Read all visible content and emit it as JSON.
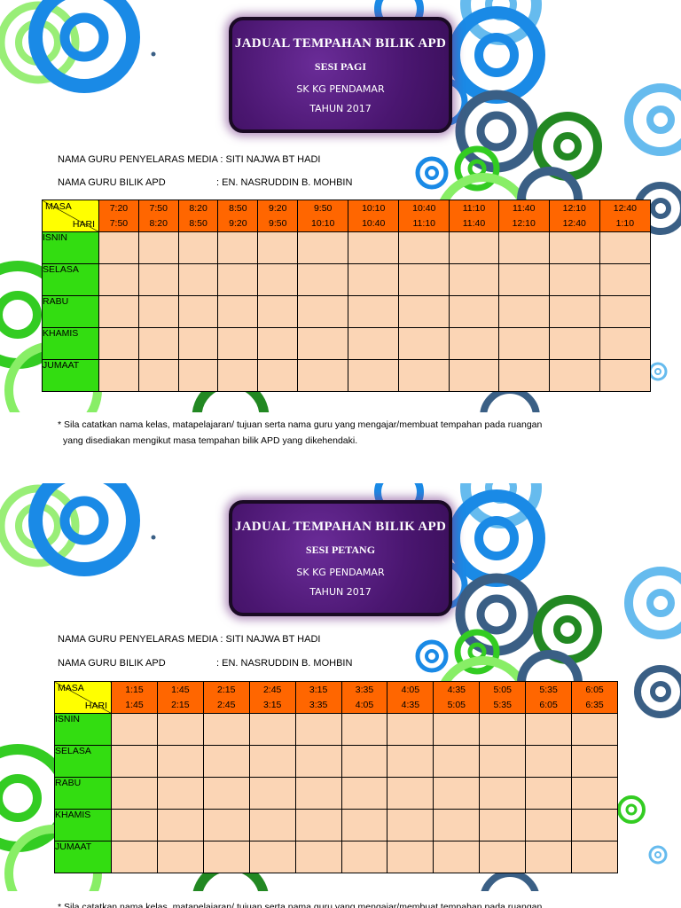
{
  "tables": [
    {
      "title": "JADUAL TEMPAHAN BILIK APD",
      "session": "SESI PAGI",
      "school": "SK KG PENDAMAR",
      "year": "TAHUN 2017",
      "coordinator_line": "NAMA GURU PENYELARAS MEDIA : SITI NAJWA BT HADI",
      "apd_teacher_label": "NAMA GURU BILIK APD",
      "apd_teacher_value": ": EN. NASRUDDIN B. MOHBIN",
      "corner_masa": "MASA",
      "corner_hari": "HARI",
      "time_slots": [
        {
          "start": "7:20",
          "end": "7:50"
        },
        {
          "start": "7:50",
          "end": "8:20"
        },
        {
          "start": "8:20",
          "end": "8:50"
        },
        {
          "start": "8:50",
          "end": "9:20"
        },
        {
          "start": "9:20",
          "end": "9:50"
        },
        {
          "start": "9:50",
          "end": "10:10"
        },
        {
          "start": "10:10",
          "end": "10:40"
        },
        {
          "start": "10:40",
          "end": "11:10"
        },
        {
          "start": "11:10",
          "end": "11:40"
        },
        {
          "start": "11:40",
          "end": "12:10"
        },
        {
          "start": "12:10",
          "end": "12:40"
        },
        {
          "start": "12:40",
          "end": "1:10"
        }
      ],
      "days": [
        "ISNIN",
        "SELASA",
        "RABU",
        "KHAMIS",
        "JUMAAT"
      ],
      "note_line1": "* Sila catatkan nama kelas, matapelajaran/ tujuan serta nama guru yang mengajar/membuat tempahan pada ruangan",
      "note_line2": "yang disediakan mengikut masa tempahan bilik APD yang dikehendaki."
    },
    {
      "title": "JADUAL TEMPAHAN BILIK APD",
      "session": "SESI PETANG",
      "school": "SK KG PENDAMAR",
      "year": "TAHUN 2017",
      "coordinator_line": "NAMA GURU PENYELARAS MEDIA : SITI NAJWA BT HADI",
      "apd_teacher_label": "NAMA GURU BILIK APD",
      "apd_teacher_value": ": EN. NASRUDDIN B. MOHBIN",
      "corner_masa": "MASA",
      "corner_hari": "HARI",
      "time_slots": [
        {
          "start": "1:15",
          "end": "1:45"
        },
        {
          "start": "1:45",
          "end": "2:15"
        },
        {
          "start": "2:15",
          "end": "2:45"
        },
        {
          "start": "2:45",
          "end": "3:15"
        },
        {
          "start": "3:15",
          "end": "3:35"
        },
        {
          "start": "3:35",
          "end": "4:05"
        },
        {
          "start": "4:05",
          "end": "4:35"
        },
        {
          "start": "4:35",
          "end": "5:05"
        },
        {
          "start": "5:05",
          "end": "5:35"
        },
        {
          "start": "5:35",
          "end": "6:05"
        },
        {
          "start": "6:05",
          "end": "6:35"
        }
      ],
      "days": [
        "ISNIN",
        "SELASA",
        "RABU",
        "KHAMIS",
        "JUMAAT"
      ],
      "note_line1": "* Sila catatkan nama kelas, matapelajaran/ tujuan serta nama guru yang mengajar/membuat tempahan pada ruangan",
      "note_line2": ""
    }
  ],
  "colors": {
    "title_purple": "#4a1670",
    "header_orange": "#ff6600",
    "day_green": "#33dd11",
    "corner_yellow": "#ffff00",
    "cell_peach": "#fbd5b5",
    "deco_blue": "#1a8ae6",
    "deco_light_blue": "#66bbee",
    "deco_green": "#33cc22",
    "deco_dark_green": "#228822",
    "deco_slate": "#3a5f85",
    "deco_lime": "#88ee66"
  }
}
